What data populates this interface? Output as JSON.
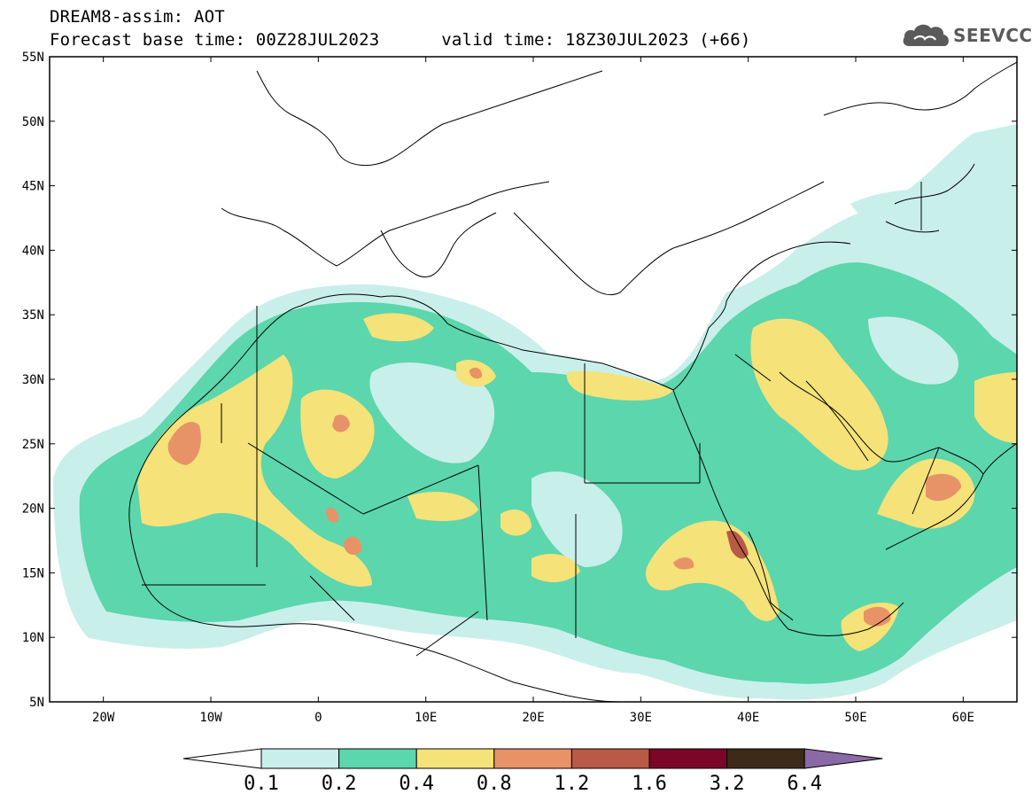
{
  "header": {
    "title": "DREAM8-assim: AOT",
    "base_time": "Forecast base time: 00Z28JUL2023",
    "valid_time": "valid time: 18Z30JUL2023 (+66)"
  },
  "logo": {
    "text": "SEEVCCC",
    "icon": "cloud-icon"
  },
  "map": {
    "lat_labels": [
      "55N",
      "50N",
      "45N",
      "40N",
      "35N",
      "30N",
      "25N",
      "20N",
      "15N",
      "10N",
      "5N"
    ],
    "lon_labels": [
      "20W",
      "10W",
      "0",
      "10E",
      "20E",
      "30E",
      "40E",
      "50E",
      "60E"
    ],
    "lat_range": [
      5,
      55
    ],
    "lon_range": [
      -25,
      65
    ],
    "grid": false
  },
  "colorbar": {
    "levels": [
      "0.1",
      "0.2",
      "0.4",
      "0.8",
      "1.2",
      "1.6",
      "3.2",
      "6.4"
    ],
    "colors": [
      "#ffffff",
      "#c9efea",
      "#5cd6ac",
      "#f5e278",
      "#e89268",
      "#b85a46",
      "#7a0628",
      "#3e2a18",
      "#8a6aa6"
    ]
  }
}
